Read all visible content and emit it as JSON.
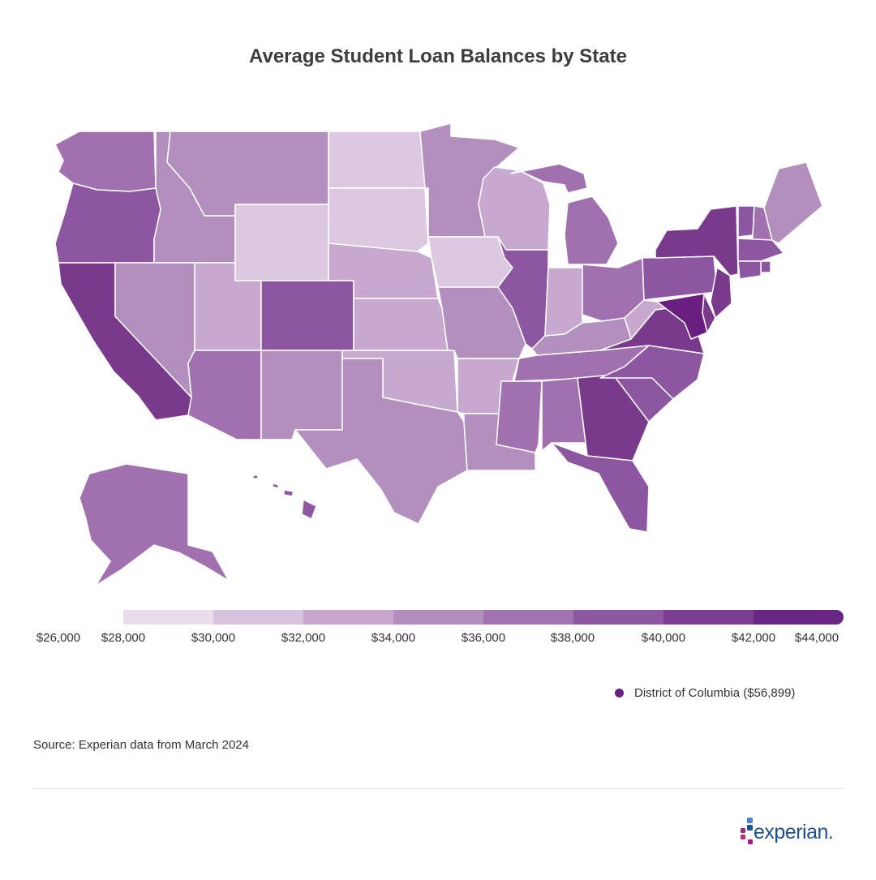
{
  "title": "Average Student Loan Balances by State",
  "legend": {
    "labels": [
      "$26,000",
      "$28,000",
      "$30,000",
      "$32,000",
      "$34,000",
      "$36,000",
      "$38,000",
      "$40,000",
      "$42,000",
      "$44,000"
    ],
    "colors": [
      "#e8dbea",
      "#d8c3de",
      "#c6a8ce",
      "#b38dbe",
      "#a172b0",
      "#8e58a1",
      "#7b3c91",
      "#692685"
    ]
  },
  "dc_note": {
    "label": "District of Columbia ($56,899)",
    "color": "#6a1f80"
  },
  "source": "Source: Experian data from March 2024",
  "logo_text": "experian.",
  "colors": {
    "c1": "#dcc8e0",
    "c2": "#c7a9cf",
    "c3": "#b28fbd",
    "c4": "#a171af",
    "c5": "#8d56a0",
    "c6": "#7a3a8c",
    "c7": "#6a1f80"
  },
  "states": [
    {
      "name": "Washington",
      "color": "c4"
    },
    {
      "name": "Oregon",
      "color": "c5"
    },
    {
      "name": "California",
      "color": "c6"
    },
    {
      "name": "Idaho",
      "color": "c3"
    },
    {
      "name": "Nevada",
      "color": "c3"
    },
    {
      "name": "Montana",
      "color": "c3"
    },
    {
      "name": "Wyoming",
      "color": "c1"
    },
    {
      "name": "Utah",
      "color": "c2"
    },
    {
      "name": "Arizona",
      "color": "c4"
    },
    {
      "name": "Colorado",
      "color": "c5"
    },
    {
      "name": "New Mexico",
      "color": "c3"
    },
    {
      "name": "North Dakota",
      "color": "c1"
    },
    {
      "name": "South Dakota",
      "color": "c1"
    },
    {
      "name": "Nebraska",
      "color": "c2"
    },
    {
      "name": "Kansas",
      "color": "c2"
    },
    {
      "name": "Oklahoma",
      "color": "c2"
    },
    {
      "name": "Texas",
      "color": "c3"
    },
    {
      "name": "Minnesota",
      "color": "c3"
    },
    {
      "name": "Iowa",
      "color": "c1"
    },
    {
      "name": "Missouri",
      "color": "c3"
    },
    {
      "name": "Arkansas",
      "color": "c2"
    },
    {
      "name": "Louisiana",
      "color": "c3"
    },
    {
      "name": "Wisconsin",
      "color": "c2"
    },
    {
      "name": "Illinois",
      "color": "c5"
    },
    {
      "name": "Michigan",
      "color": "c4"
    },
    {
      "name": "Indiana",
      "color": "c2"
    },
    {
      "name": "Ohio",
      "color": "c4"
    },
    {
      "name": "Kentucky",
      "color": "c3"
    },
    {
      "name": "Tennessee",
      "color": "c4"
    },
    {
      "name": "Mississippi",
      "color": "c4"
    },
    {
      "name": "Alabama",
      "color": "c4"
    },
    {
      "name": "Georgia",
      "color": "c6"
    },
    {
      "name": "Florida",
      "color": "c5"
    },
    {
      "name": "South Carolina",
      "color": "c5"
    },
    {
      "name": "North Carolina",
      "color": "c5"
    },
    {
      "name": "Virginia",
      "color": "c6"
    },
    {
      "name": "West Virginia",
      "color": "c2"
    },
    {
      "name": "Pennsylvania",
      "color": "c5"
    },
    {
      "name": "New York",
      "color": "c6"
    },
    {
      "name": "Vermont",
      "color": "c5"
    },
    {
      "name": "New Hampshire",
      "color": "c4"
    },
    {
      "name": "Maine",
      "color": "c3"
    },
    {
      "name": "Massachusetts",
      "color": "c5"
    },
    {
      "name": "Rhode Island",
      "color": "c5"
    },
    {
      "name": "Connecticut",
      "color": "c5"
    },
    {
      "name": "New Jersey",
      "color": "c6"
    },
    {
      "name": "Delaware",
      "color": "c6"
    },
    {
      "name": "Maryland",
      "color": "c7"
    },
    {
      "name": "Alaska",
      "color": "c4"
    },
    {
      "name": "Hawaii",
      "color": "c5"
    }
  ]
}
